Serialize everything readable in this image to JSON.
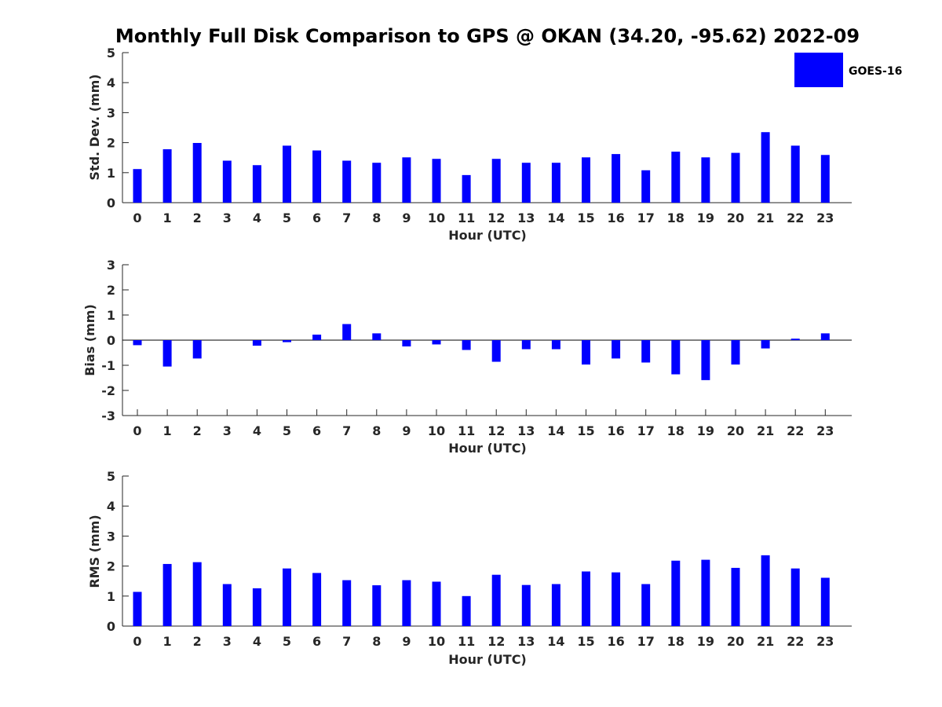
{
  "title": "Monthly Full Disk Comparison to GPS @ OKAN (34.20, -95.62) 2022-09",
  "legend": {
    "label": "GOES-16",
    "color": "#0000ff"
  },
  "chart_data": [
    {
      "type": "bar",
      "series_name": "GOES-16",
      "color": "#0000ff",
      "xlabel": "Hour (UTC)",
      "ylabel": "Std. Dev. (mm)",
      "ylim": [
        0,
        5
      ],
      "yticks": [
        0,
        1,
        2,
        3,
        4,
        5
      ],
      "categories": [
        "0",
        "1",
        "2",
        "3",
        "4",
        "5",
        "6",
        "7",
        "8",
        "9",
        "10",
        "11",
        "12",
        "13",
        "14",
        "15",
        "16",
        "17",
        "18",
        "19",
        "20",
        "21",
        "22",
        "23"
      ],
      "values": [
        1.12,
        1.78,
        1.99,
        1.4,
        1.25,
        1.9,
        1.74,
        1.4,
        1.33,
        1.51,
        1.46,
        0.92,
        1.46,
        1.33,
        1.33,
        1.51,
        1.62,
        1.08,
        1.7,
        1.51,
        1.66,
        2.35,
        1.9,
        1.59
      ]
    },
    {
      "type": "bar",
      "series_name": "GOES-16",
      "color": "#0000ff",
      "xlabel": "Hour (UTC)",
      "ylabel": "Bias (mm)",
      "ylim": [
        -3,
        3
      ],
      "yticks": [
        -3,
        -2,
        -1,
        0,
        1,
        2,
        3
      ],
      "zero_line": true,
      "categories": [
        "0",
        "1",
        "2",
        "3",
        "4",
        "5",
        "6",
        "7",
        "8",
        "9",
        "10",
        "11",
        "12",
        "13",
        "14",
        "15",
        "16",
        "17",
        "18",
        "19",
        "20",
        "21",
        "22",
        "23"
      ],
      "values": [
        -0.2,
        -1.05,
        -0.73,
        0.0,
        -0.22,
        -0.08,
        0.22,
        0.64,
        0.27,
        -0.25,
        -0.17,
        -0.39,
        -0.86,
        -0.36,
        -0.36,
        -0.97,
        -0.73,
        -0.89,
        -1.36,
        -1.59,
        -0.97,
        -0.33,
        0.06,
        0.27
      ]
    },
    {
      "type": "bar",
      "series_name": "GOES-16",
      "color": "#0000ff",
      "xlabel": "Hour (UTC)",
      "ylabel": "RMS (mm)",
      "ylim": [
        0,
        5
      ],
      "yticks": [
        0,
        1,
        2,
        3,
        4,
        5
      ],
      "categories": [
        "0",
        "1",
        "2",
        "3",
        "4",
        "5",
        "6",
        "7",
        "8",
        "9",
        "10",
        "11",
        "12",
        "13",
        "14",
        "15",
        "16",
        "17",
        "18",
        "19",
        "20",
        "21",
        "22",
        "23"
      ],
      "values": [
        1.14,
        2.07,
        2.13,
        1.4,
        1.26,
        1.92,
        1.77,
        1.53,
        1.36,
        1.53,
        1.48,
        1.0,
        1.71,
        1.37,
        1.4,
        1.82,
        1.79,
        1.4,
        2.18,
        2.21,
        1.94,
        2.36,
        1.92,
        1.61
      ]
    }
  ]
}
